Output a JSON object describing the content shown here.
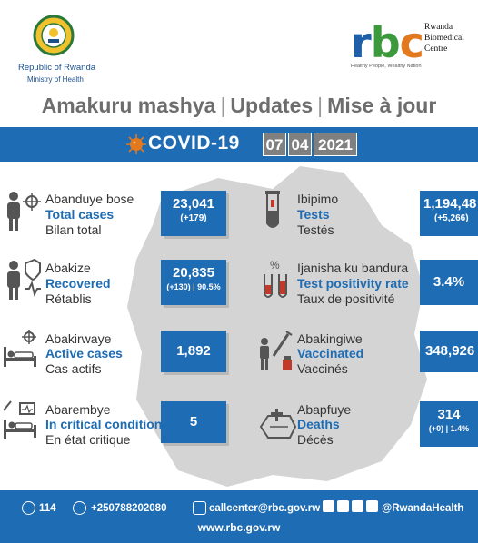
{
  "header": {
    "government": "Republic of Rwanda",
    "ministry": "Ministry of Health",
    "rbc_letters": [
      "r",
      "b",
      "c"
    ],
    "rbc_name_lines": [
      "Rwanda",
      "Biomedical",
      "Centre"
    ],
    "rbc_tagline": "Healthy People, Wealthy Nation"
  },
  "updates_line": {
    "kinyarwanda": "Amakuru mashya",
    "english": "Updates",
    "french": "Mise à jour",
    "separator": "|"
  },
  "covid": {
    "title": "COVID-19",
    "date_day": "07",
    "date_month": "04",
    "date_year": "2021"
  },
  "stats_left": [
    {
      "kinyarwanda": "Abanduye bose",
      "english": "Total cases",
      "french": "Bilan total",
      "value": "23,041",
      "sub": "(+179)",
      "icon": "person-virus-icon"
    },
    {
      "kinyarwanda": "Abakize",
      "english": "Recovered",
      "french": "Rétablis",
      "value": "20,835",
      "sub": "(+130) | 90.5%",
      "icon": "person-shield-icon"
    },
    {
      "kinyarwanda": "Abakirwaye",
      "english": "Active cases",
      "french": "Cas actifs",
      "value": "1,892",
      "sub": "",
      "icon": "hospital-bed-icon"
    },
    {
      "kinyarwanda": "Abarembye",
      "english": "In critical condition",
      "french": "En état critique",
      "value": "5",
      "sub": "",
      "icon": "icu-bed-icon"
    }
  ],
  "stats_right": [
    {
      "kinyarwanda": "Ibipimo",
      "english": "Tests",
      "french": "Testés",
      "value": "1,194,48",
      "sub": "(+5,266)",
      "icon": "test-tube-icon"
    },
    {
      "kinyarwanda": "Ijanisha ku bandura",
      "english": "Test positivity rate",
      "french": "Taux de positivité",
      "value": "3.4%",
      "sub": "",
      "icon": "percent-tubes-icon"
    },
    {
      "kinyarwanda": "Abakingiwe",
      "english": "Vaccinated",
      "french": "Vaccinés",
      "value": "348,926",
      "sub": "",
      "icon": "vaccine-icon"
    },
    {
      "kinyarwanda": "Abapfuye",
      "english": "Deaths",
      "french": "Décès",
      "value": "314",
      "sub": "(+0) | 1.4%",
      "icon": "coffin-icon"
    }
  ],
  "footer": {
    "phone": "114",
    "whatsapp": "+250788202080",
    "email": "callcenter@rbc.gov.rw",
    "social_handle": "@RwandaHealth",
    "website": "www.rbc.gov.rw"
  },
  "colors": {
    "brand_blue": "#1e6cb4",
    "rbc_green": "#3c9a3c",
    "rbc_orange": "#e2791f",
    "map_gray": "#d4d4d4"
  }
}
